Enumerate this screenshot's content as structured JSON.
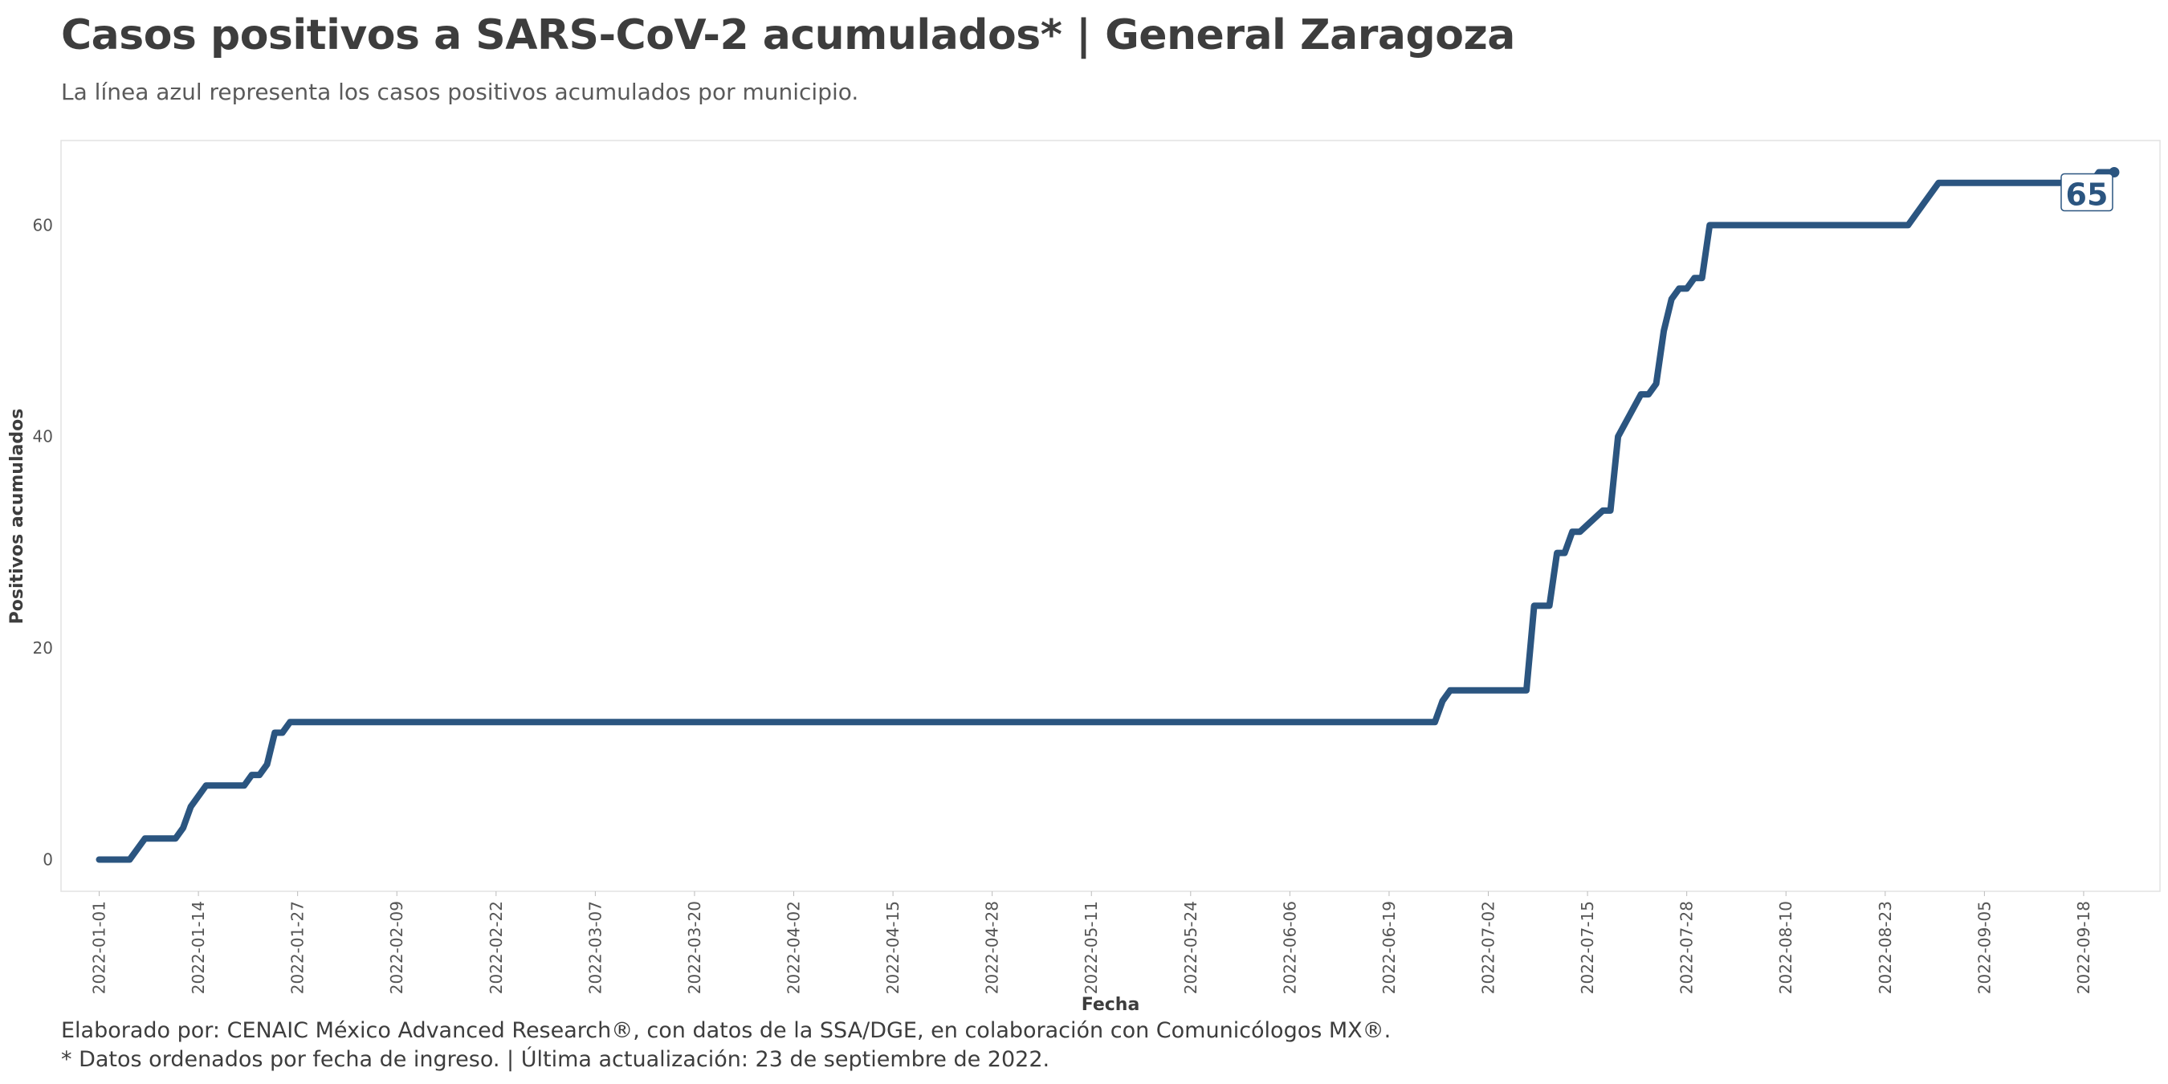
{
  "header": {
    "title": "Casos positivos a SARS-CoV-2 acumulados* | General Zaragoza",
    "subtitle": "La línea azul representa los casos positivos acumulados por municipio."
  },
  "footer": {
    "line1": "Elaborado por: CENAIC México Advanced Research®, con datos de la SSA/DGE, en colaboración con Comunicólogos MX®.",
    "line2": "* Datos ordenados por fecha de ingreso. | Última actualización: 23 de septiembre de 2022."
  },
  "chart_data": {
    "type": "line",
    "title": "Casos positivos a SARS-CoV-2 acumulados* | General Zaragoza",
    "subtitle": "La línea azul representa los casos positivos acumulados por municipio.",
    "xlabel": "Fecha",
    "ylabel": "Positivos acumulados",
    "xlim": [
      "2021-12-27",
      "2022-09-28"
    ],
    "ylim": [
      -3,
      68
    ],
    "x_ticks": [
      "2022-01-01",
      "2022-01-14",
      "2022-01-27",
      "2022-02-09",
      "2022-02-22",
      "2022-03-07",
      "2022-03-20",
      "2022-04-02",
      "2022-04-15",
      "2022-04-28",
      "2022-05-11",
      "2022-05-24",
      "2022-06-06",
      "2022-06-19",
      "2022-07-02",
      "2022-07-15",
      "2022-07-28",
      "2022-08-10",
      "2022-08-23",
      "2022-09-05",
      "2022-09-18"
    ],
    "y_ticks": [
      0,
      20,
      40,
      60
    ],
    "color": "#2b5580",
    "grid": false,
    "end_label": "65",
    "series": [
      {
        "x": [
          "2022-01-01",
          "2022-01-05",
          "2022-01-07",
          "2022-01-11",
          "2022-01-12",
          "2022-01-13",
          "2022-01-15",
          "2022-01-20",
          "2022-01-21",
          "2022-01-22",
          "2022-01-23",
          "2022-01-24",
          "2022-01-25",
          "2022-01-26",
          "2022-06-25",
          "2022-06-26",
          "2022-06-27",
          "2022-07-07",
          "2022-07-08",
          "2022-07-10",
          "2022-07-11",
          "2022-07-12",
          "2022-07-13",
          "2022-07-14",
          "2022-07-17",
          "2022-07-18",
          "2022-07-19",
          "2022-07-22",
          "2022-07-23",
          "2022-07-24",
          "2022-07-25",
          "2022-07-26",
          "2022-07-27",
          "2022-07-28",
          "2022-07-29",
          "2022-07-30",
          "2022-07-31",
          "2022-08-26",
          "2022-08-27",
          "2022-08-28",
          "2022-08-30",
          "2022-09-19",
          "2022-09-20",
          "2022-09-22"
        ],
        "y": [
          0,
          0,
          2,
          2,
          3,
          5,
          7,
          7,
          8,
          8,
          9,
          12,
          12,
          13,
          13,
          15,
          16,
          16,
          24,
          24,
          29,
          29,
          31,
          31,
          33,
          33,
          40,
          44,
          44,
          45,
          50,
          53,
          54,
          54,
          55,
          55,
          60,
          60,
          61,
          62,
          64,
          64,
          65,
          65
        ]
      }
    ]
  }
}
